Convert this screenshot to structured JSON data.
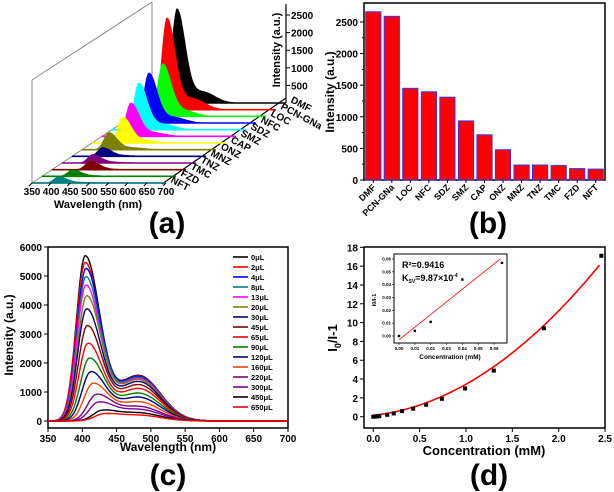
{
  "chart_data": [
    {
      "id": "a",
      "panel_label": "(a)",
      "type": "area",
      "subtype": "3d-waterfall",
      "xlabel": "Wavelength (nm)",
      "zlabel": "Intensity (a.u.)",
      "x_ticks": [
        "350",
        "400",
        "450",
        "500",
        "550",
        "600",
        "650",
        "700"
      ],
      "xlim": [
        350,
        700
      ],
      "z_ticks": [
        "500",
        "1000",
        "1500",
        "2000",
        "2500"
      ],
      "zlim": [
        0,
        2800
      ],
      "series": [
        {
          "name": "DMF",
          "color": "#000000",
          "peak_nm": 415,
          "peak": 2650
        },
        {
          "name": "PCN-GNa",
          "color": "#ff0000",
          "peak_nm": 415,
          "peak": 2580
        },
        {
          "name": "LOC",
          "color": "#00ff00",
          "peak_nm": 430,
          "peak": 1450
        },
        {
          "name": "NFC",
          "color": "#0000ff",
          "peak_nm": 420,
          "peak": 1400
        },
        {
          "name": "SDZ",
          "color": "#00ffff",
          "peak_nm": 420,
          "peak": 1310
        },
        {
          "name": "SMZ",
          "color": "#ff00ff",
          "peak_nm": 425,
          "peak": 930
        },
        {
          "name": "CAP",
          "color": "#ffff00",
          "peak_nm": 430,
          "peak": 720
        },
        {
          "name": "ONZ",
          "color": "#808000",
          "peak_nm": 420,
          "peak": 480
        },
        {
          "name": "MNZ",
          "color": "#000080",
          "peak_nm": 430,
          "peak": 240
        },
        {
          "name": "TNZ",
          "color": "#800080",
          "peak_nm": 430,
          "peak": 235
        },
        {
          "name": "TMC",
          "color": "#800000",
          "peak_nm": 450,
          "peak": 230
        },
        {
          "name": "FZD",
          "color": "#008000",
          "peak_nm": 430,
          "peak": 180
        },
        {
          "name": "NFT",
          "color": "#008080",
          "peak_nm": 420,
          "peak": 175
        }
      ]
    },
    {
      "id": "b",
      "panel_label": "(b)",
      "type": "bar",
      "xlabel": "",
      "ylabel": "Intensity (a.u.)",
      "ylim": [
        0,
        2800
      ],
      "y_ticks": [
        "0",
        "500",
        "1000",
        "1500",
        "2000",
        "2500"
      ],
      "bar_color": "#ff0000",
      "bar_edge_color": "#3333ff",
      "categories": [
        "DMF",
        "PCN-GNa",
        "LOC",
        "NFC",
        "SDZ",
        "SMZ",
        "CAP",
        "ONZ",
        "MNZ",
        "TNZ",
        "TMC",
        "FZD",
        "NFT"
      ],
      "values": [
        2660,
        2590,
        1450,
        1395,
        1310,
        935,
        715,
        480,
        238,
        238,
        228,
        180,
        173
      ]
    },
    {
      "id": "c",
      "panel_label": "(c)",
      "type": "line",
      "xlabel": "Wavelength (nm)",
      "ylabel": "Intensity (a.u.)",
      "xlim": [
        350,
        700
      ],
      "ylim": [
        0,
        6000
      ],
      "x_ticks": [
        "350",
        "400",
        "450",
        "500",
        "550",
        "600",
        "650",
        "700"
      ],
      "y_ticks": [
        "0",
        "1000",
        "2000",
        "3000",
        "4000",
        "5000",
        "6000"
      ],
      "legend_position": "top-right",
      "series": [
        {
          "name": "0μL",
          "color": "#000000",
          "peak": 5700,
          "peak_nm": 404,
          "shoulder": 1570
        },
        {
          "name": "2μL",
          "color": "#ff0000",
          "peak": 5470,
          "peak_nm": 404,
          "shoulder": 1550
        },
        {
          "name": "4μL",
          "color": "#0000ff",
          "peak": 5260,
          "peak_nm": 405,
          "shoulder": 1530
        },
        {
          "name": "8μL",
          "color": "#008080",
          "peak": 4980,
          "peak_nm": 405,
          "shoulder": 1500
        },
        {
          "name": "13μL",
          "color": "#ff00ff",
          "peak": 4690,
          "peak_nm": 405,
          "shoulder": 1470
        },
        {
          "name": "20μL",
          "color": "#808000",
          "peak": 4320,
          "peak_nm": 406,
          "shoulder": 1430
        },
        {
          "name": "30μL",
          "color": "#000080",
          "peak": 3870,
          "peak_nm": 406,
          "shoulder": 1360
        },
        {
          "name": "45μL",
          "color": "#800000",
          "peak": 3290,
          "peak_nm": 407,
          "shoulder": 1250
        },
        {
          "name": "65μL",
          "color": "#ff0000",
          "peak": 2680,
          "peak_nm": 408,
          "shoulder": 1120
        },
        {
          "name": "90μL",
          "color": "#008000",
          "peak": 2170,
          "peak_nm": 410,
          "shoulder": 960
        },
        {
          "name": "120μL",
          "color": "#000080",
          "peak": 1700,
          "peak_nm": 412,
          "shoulder": 820
        },
        {
          "name": "160μL",
          "color": "#ff4500",
          "peak": 1300,
          "peak_nm": 415,
          "shoulder": 660
        },
        {
          "name": "220μL",
          "color": "#800080",
          "peak": 920,
          "peak_nm": 420,
          "shoulder": 500
        },
        {
          "name": "300μL",
          "color": "#8000a0",
          "peak": 655,
          "peak_nm": 423,
          "shoulder": 400
        },
        {
          "name": "450μL",
          "color": "#000000",
          "peak": 370,
          "peak_nm": 428,
          "shoulder": 280
        },
        {
          "name": "650μL",
          "color": "#ff0000",
          "peak": 250,
          "peak_nm": 430,
          "shoulder": 200
        }
      ]
    },
    {
      "id": "d",
      "panel_label": "(d)",
      "type": "scatter",
      "xlabel": "Concentration (mM)",
      "ylabel": "I0/I-1",
      "ylabel_parts": {
        "main": "I",
        "sub": "0",
        "rest": "/I-1"
      },
      "xlim": [
        -0.1,
        2.5
      ],
      "ylim": [
        -1,
        18
      ],
      "x_ticks": [
        "0.0",
        "0.5",
        "1.0",
        "1.5",
        "2.0",
        "2.5"
      ],
      "y_ticks": [
        "0",
        "2",
        "4",
        "6",
        "8",
        "10",
        "12",
        "14",
        "16",
        "18"
      ],
      "fit_color": "#ff0000",
      "x": [
        0.0,
        0.02,
        0.04,
        0.065,
        0.15,
        0.22,
        0.31,
        0.43,
        0.57,
        0.74,
        0.99,
        1.3,
        1.84,
        2.46
      ],
      "y": [
        0.0,
        0.01,
        0.04,
        0.06,
        0.2,
        0.35,
        0.6,
        0.85,
        1.27,
        1.9,
        3.0,
        4.9,
        9.4,
        17.1
      ],
      "inset": {
        "type": "scatter",
        "xlabel": "Concentration (mM)",
        "ylabel": "I0/I-1",
        "xlim": [
          -0.002,
          0.066
        ],
        "ylim": [
          -0.006,
          0.062
        ],
        "x_ticks": [
          "0.00",
          "0.01",
          "0.02",
          "0.03",
          "0.04",
          "0.05",
          "0.06"
        ],
        "y_ticks": [
          "0.00",
          "0.01",
          "0.02",
          "0.03",
          "0.04",
          "0.05",
          "0.06"
        ],
        "x": [
          0.0,
          0.01,
          0.02,
          0.04,
          0.065
        ],
        "y": [
          0.0,
          0.004,
          0.011,
          0.044,
          0.057
        ],
        "fit": {
          "slope": 0.987,
          "intercept": -0.003
        },
        "annotation_r2": "R²=0.9416",
        "annotation_ksv_prefix": "K",
        "annotation_ksv_sub": "SV",
        "annotation_ksv_value": "=9.87×10",
        "annotation_ksv_exp": "-4"
      }
    }
  ]
}
